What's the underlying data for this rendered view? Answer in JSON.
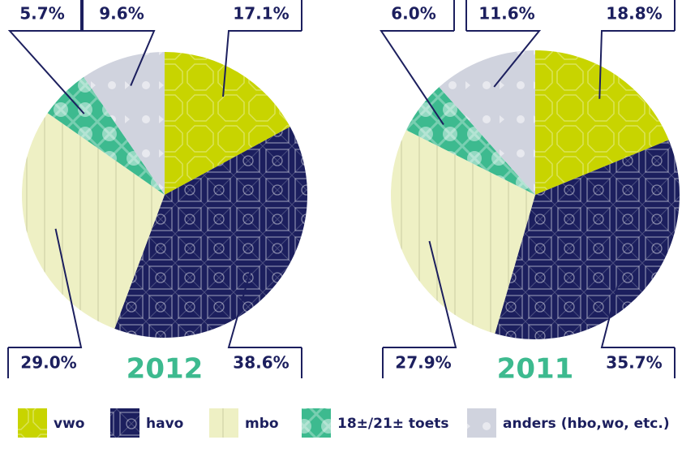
{
  "chart_data": [
    {
      "type": "pie",
      "title": "2012",
      "categories": [
        "vwo",
        "havo",
        "mbo",
        "18±/21± toets",
        "anders (hbo,wo, etc.)"
      ],
      "values": [
        17.1,
        38.6,
        29.0,
        5.7,
        9.6
      ],
      "value_labels": [
        "17.1%",
        "38.6%",
        "29.0%",
        "5.7%",
        "9.6%"
      ],
      "colors": [
        "#c8d400",
        "#1c1f5e",
        "#eef0c4",
        "#3dba8f",
        "#d0d3de"
      ]
    },
    {
      "type": "pie",
      "title": "2011",
      "categories": [
        "vwo",
        "havo",
        "mbo",
        "18±/21± toets",
        "anders (hbo,wo, etc.)"
      ],
      "values": [
        18.8,
        35.7,
        27.9,
        6.0,
        11.6
      ],
      "value_labels": [
        "18.8%",
        "35.7%",
        "27.9%",
        "6.0%",
        "11.6%"
      ],
      "colors": [
        "#c8d400",
        "#1c1f5e",
        "#eef0c4",
        "#3dba8f",
        "#d0d3de"
      ]
    }
  ]
}
